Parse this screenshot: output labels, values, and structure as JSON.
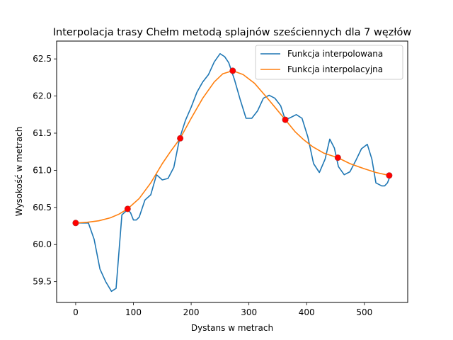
{
  "chart_data": {
    "type": "line",
    "title": "Interpolacja trasy Chełm metodą splajnów sześciennych dla 7 węzłów",
    "xlabel": "Dystans w metrach",
    "ylabel": "Wysokość w metrach",
    "xlim": [
      -33,
      575
    ],
    "ylim": [
      59.22,
      62.74
    ],
    "xticks": [
      0,
      100,
      200,
      300,
      400,
      500
    ],
    "yticks": [
      59.5,
      60.0,
      60.5,
      61.0,
      61.5,
      62.0,
      62.5
    ],
    "xtick_labels": [
      "0",
      "100",
      "200",
      "300",
      "400",
      "500"
    ],
    "ytick_labels": [
      "59.5",
      "60.0",
      "60.5",
      "61.0",
      "61.5",
      "62.0",
      "62.5"
    ],
    "grid": false,
    "legend_position": "top-right",
    "series": [
      {
        "name": "Funkcja interpolowana",
        "color": "#1f77b4",
        "x": [
          0,
          10,
          22,
          32,
          42,
          52,
          62,
          70,
          80,
          90,
          95,
          100,
          105,
          110,
          120,
          130,
          140,
          150,
          160,
          170,
          180,
          190,
          200,
          210,
          220,
          230,
          240,
          250,
          258,
          265,
          275,
          285,
          295,
          305,
          315,
          325,
          335,
          345,
          355,
          363,
          372,
          382,
          392,
          402,
          412,
          422,
          432,
          440,
          448,
          455,
          465,
          475,
          485,
          495,
          505,
          513,
          520,
          530,
          535,
          540,
          545
        ],
        "y": [
          60.29,
          60.29,
          60.29,
          60.07,
          59.67,
          59.5,
          59.37,
          59.41,
          60.4,
          60.47,
          60.43,
          60.33,
          60.33,
          60.37,
          60.6,
          60.67,
          60.94,
          60.87,
          60.89,
          61.04,
          61.43,
          61.67,
          61.85,
          62.05,
          62.19,
          62.29,
          62.46,
          62.57,
          62.53,
          62.45,
          62.22,
          61.95,
          61.7,
          61.7,
          61.8,
          61.97,
          62.01,
          61.97,
          61.87,
          61.68,
          61.71,
          61.75,
          61.7,
          61.45,
          61.09,
          60.97,
          61.15,
          61.42,
          61.3,
          61.05,
          60.94,
          60.98,
          61.13,
          61.29,
          61.35,
          61.15,
          60.83,
          60.79,
          60.79,
          60.83,
          60.93
        ]
      },
      {
        "name": "Funkcja interpolacyjna",
        "color": "#ff7f0e",
        "x": [
          0,
          20,
          40,
          60,
          75,
          90,
          110,
          130,
          150,
          165,
          181,
          200,
          220,
          240,
          255,
          272,
          290,
          310,
          330,
          345,
          363,
          380,
          395,
          410,
          430,
          454,
          475,
          500,
          520,
          543
        ],
        "y": [
          60.29,
          60.3,
          60.32,
          60.36,
          60.41,
          60.48,
          60.62,
          60.83,
          61.09,
          61.26,
          61.43,
          61.7,
          61.97,
          62.19,
          62.3,
          62.34,
          62.29,
          62.17,
          61.99,
          61.85,
          61.68,
          61.52,
          61.41,
          61.32,
          61.23,
          61.17,
          61.09,
          61.02,
          60.97,
          60.93
        ]
      }
    ],
    "nodes": {
      "color": "#ff0000",
      "x": [
        0,
        90,
        181,
        272,
        363,
        454,
        543
      ],
      "y": [
        60.29,
        60.48,
        61.43,
        62.34,
        61.68,
        61.17,
        60.93
      ]
    }
  }
}
